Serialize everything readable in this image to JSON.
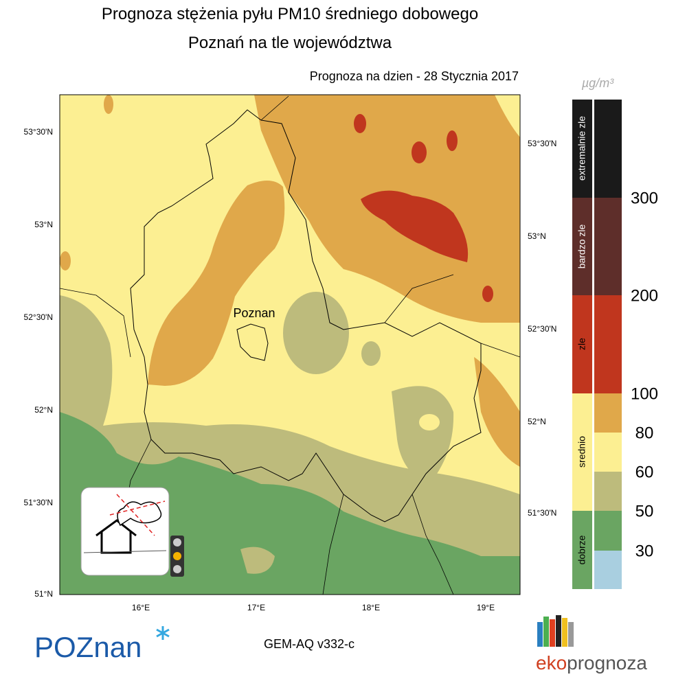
{
  "header": {
    "title_line1": "Prognoza stężenia pyłu PM10 średniego dobowego",
    "title_line2": "Poznań na tle województwa",
    "forecast_date": "Prognoza na dzien -  28 Stycznia 2017"
  },
  "map": {
    "city": "Poznan",
    "left_latitudes": [
      "53°30'N",
      "53°N",
      "52°30'N",
      "52°N",
      "51°30'N",
      "51°N"
    ],
    "right_latitudes": [
      "53°30'N",
      "53°N",
      "52°30'N",
      "52°N",
      "51°30'N"
    ],
    "longitudes": [
      "16°E",
      "17°E",
      "18°E",
      "19°E"
    ]
  },
  "legend": {
    "unit": "µg/m³",
    "categories": [
      "extremalnie zle",
      "bardzo zle",
      "zle",
      "srednio",
      "dobrze"
    ],
    "thresholds": [
      300,
      200,
      100,
      80,
      60,
      50,
      30
    ]
  },
  "footer": {
    "model": "GEM-AQ v332-c",
    "logo_left": "POZnan",
    "logo_right_eko": "eko",
    "logo_right_prognoza": "prognoza"
  }
}
